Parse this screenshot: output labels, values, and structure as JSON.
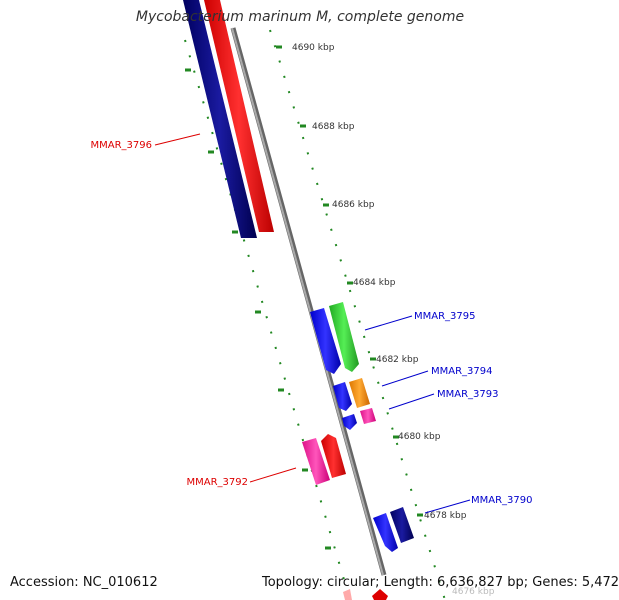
{
  "title": "Mycobacterium marinum M, complete genome",
  "accession": "Accession: NC_010612",
  "summary": "Topology: circular; Length: 6,636,827 bp; Genes: 5,472",
  "ticks": [
    "4690 kbp",
    "4688 kbp",
    "4686 kbp",
    "4684 kbp",
    "4682 kbp",
    "4680 kbp",
    "4678 kbp",
    "4676 kbp"
  ],
  "genes": [
    {
      "label": "MMAR_3796",
      "color": "#dd0000"
    },
    {
      "label": "MMAR_3795",
      "color": "#0000cc"
    },
    {
      "label": "MMAR_3794",
      "color": "#0000cc"
    },
    {
      "label": "MMAR_3793",
      "color": "#0000cc"
    },
    {
      "label": "MMAR_3792",
      "color": "#dd0000"
    },
    {
      "label": "MMAR_3790",
      "color": "#0000cc"
    }
  ],
  "colors": {
    "backbone": "#888888",
    "tick": "#228822",
    "navy": "#000080",
    "red": "#ff0000",
    "blue": "#1a1aff",
    "green": "#33cc33",
    "orange": "#ff9900",
    "pink": "#ff33aa"
  }
}
